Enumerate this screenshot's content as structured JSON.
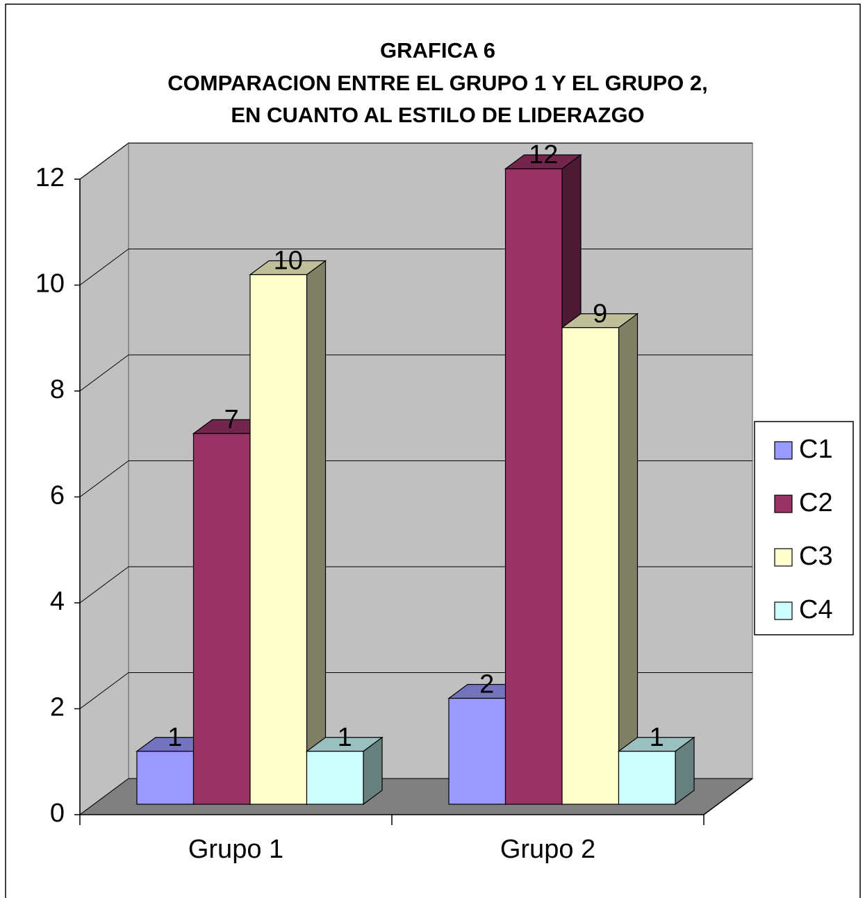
{
  "chart_data": {
    "type": "bar3d",
    "title": [
      "GRAFICA 6",
      "COMPARACION ENTRE EL GRUPO 1 Y EL GRUPO 2,",
      "EN CUANTO AL ESTILO DE LIDERAZGO"
    ],
    "categories": [
      "Grupo 1",
      "Grupo 2"
    ],
    "series": [
      {
        "name": "C1",
        "color": "#9999ff",
        "values": [
          1,
          2
        ]
      },
      {
        "name": "C2",
        "color": "#993366",
        "values": [
          7,
          12
        ]
      },
      {
        "name": "C3",
        "color": "#ffffcc",
        "values": [
          10,
          9
        ]
      },
      {
        "name": "C4",
        "color": "#ccffff",
        "values": [
          1,
          1
        ]
      }
    ],
    "ylim": [
      0,
      12
    ],
    "yticks": [
      0,
      2,
      4,
      6,
      8,
      10,
      12
    ],
    "grid": true,
    "legend": "right"
  }
}
